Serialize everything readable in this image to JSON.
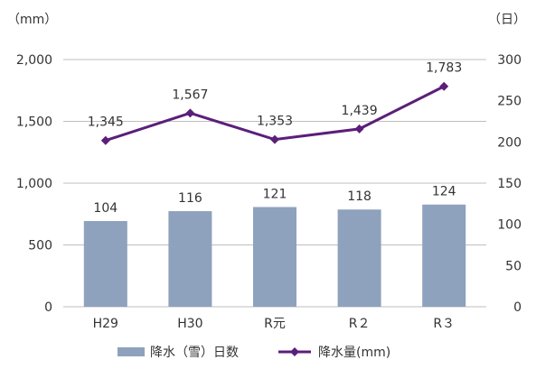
{
  "chart_data": {
    "type": "bar",
    "categories": [
      "H29",
      "H30",
      "R元",
      "R２",
      "R３"
    ],
    "series": [
      {
        "name": "降水（雪）日数",
        "type": "bar",
        "axis": "right",
        "values": [
          104,
          116,
          121,
          118,
          124
        ],
        "color": "#8EA1BD"
      },
      {
        "name": "降水量(mm)",
        "type": "line",
        "axis": "left",
        "values": [
          1345,
          1567,
          1353,
          1439,
          1783
        ],
        "color": "#5B1E7A"
      }
    ],
    "yleft": {
      "unit": "（mm）",
      "ticks": [
        "0",
        "500",
        "1,000",
        "1,500",
        "2,000"
      ],
      "range": [
        0,
        2000
      ]
    },
    "yright": {
      "unit": "（日）",
      "ticks": [
        "0",
        "50",
        "100",
        "150",
        "200",
        "250",
        "300"
      ],
      "range": [
        0,
        300
      ]
    },
    "bar_labels": [
      "104",
      "116",
      "121",
      "118",
      "124"
    ],
    "line_labels": [
      "1,345",
      "1,567",
      "1,353",
      "1,439",
      "1,783"
    ],
    "grid": true,
    "legend_position": "bottom"
  }
}
